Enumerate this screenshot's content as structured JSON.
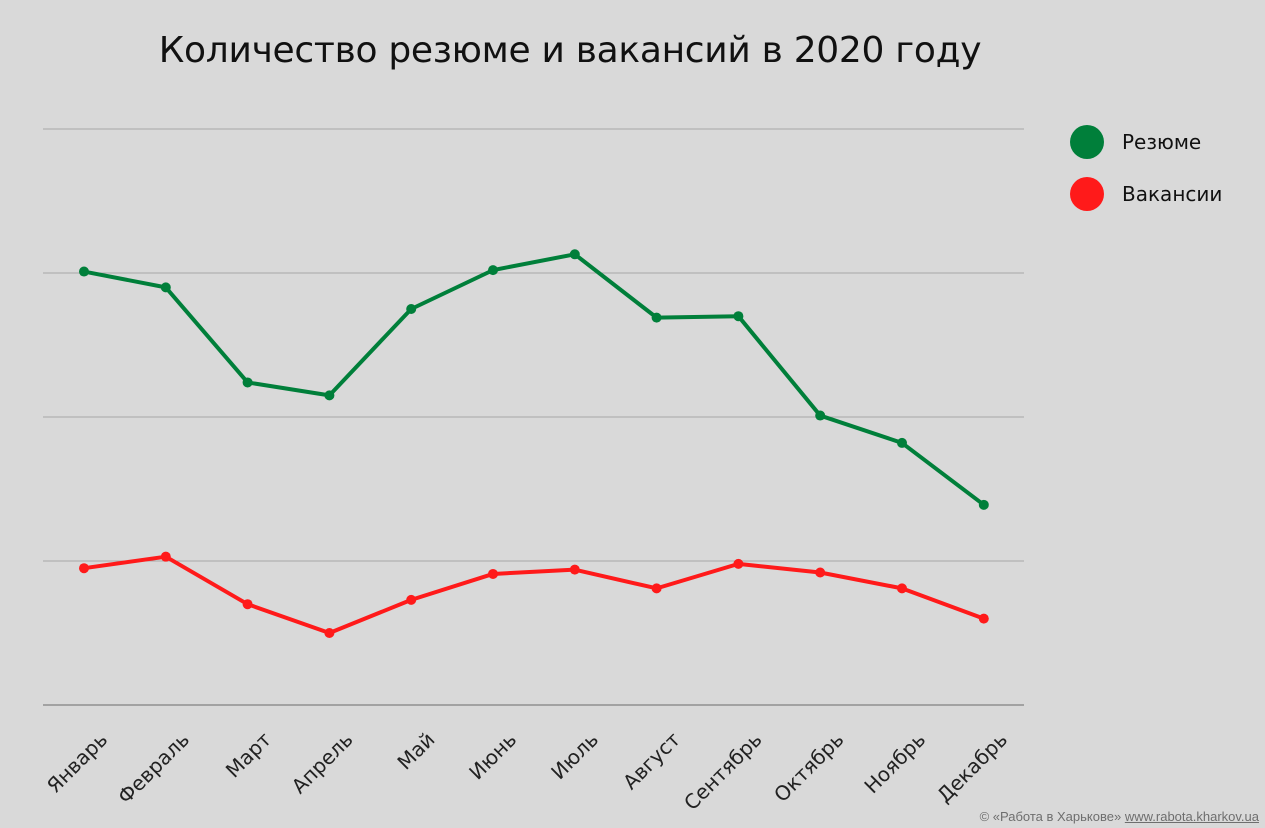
{
  "chart_data": {
    "type": "line",
    "title": "Количество резюме и вакансий в 2020 году",
    "categories": [
      "Январь",
      "Февраль",
      "Март",
      "Апрель",
      "Май",
      "Июнь",
      "Июль",
      "Август",
      "Сентябрь",
      "Октябрь",
      "Ноябрь",
      "Декабрь"
    ],
    "series": [
      {
        "name": "Резюме",
        "color": "#007f3a",
        "values": [
          3.01,
          2.9,
          2.24,
          2.15,
          2.75,
          3.02,
          3.13,
          2.69,
          2.7,
          2.01,
          1.82,
          1.39
        ]
      },
      {
        "name": "Вакансии",
        "color": "#ff1a1a",
        "values": [
          0.95,
          1.03,
          0.7,
          0.5,
          0.73,
          0.91,
          0.94,
          0.81,
          0.98,
          0.92,
          0.81,
          0.6
        ]
      }
    ],
    "ylim": [
      0,
      4
    ],
    "grid": true,
    "legend": "right",
    "xlabel": "",
    "ylabel": ""
  },
  "footer": {
    "copyright": "© «Работа в Харькове»",
    "link": "www.rabota.kharkov.ua"
  }
}
